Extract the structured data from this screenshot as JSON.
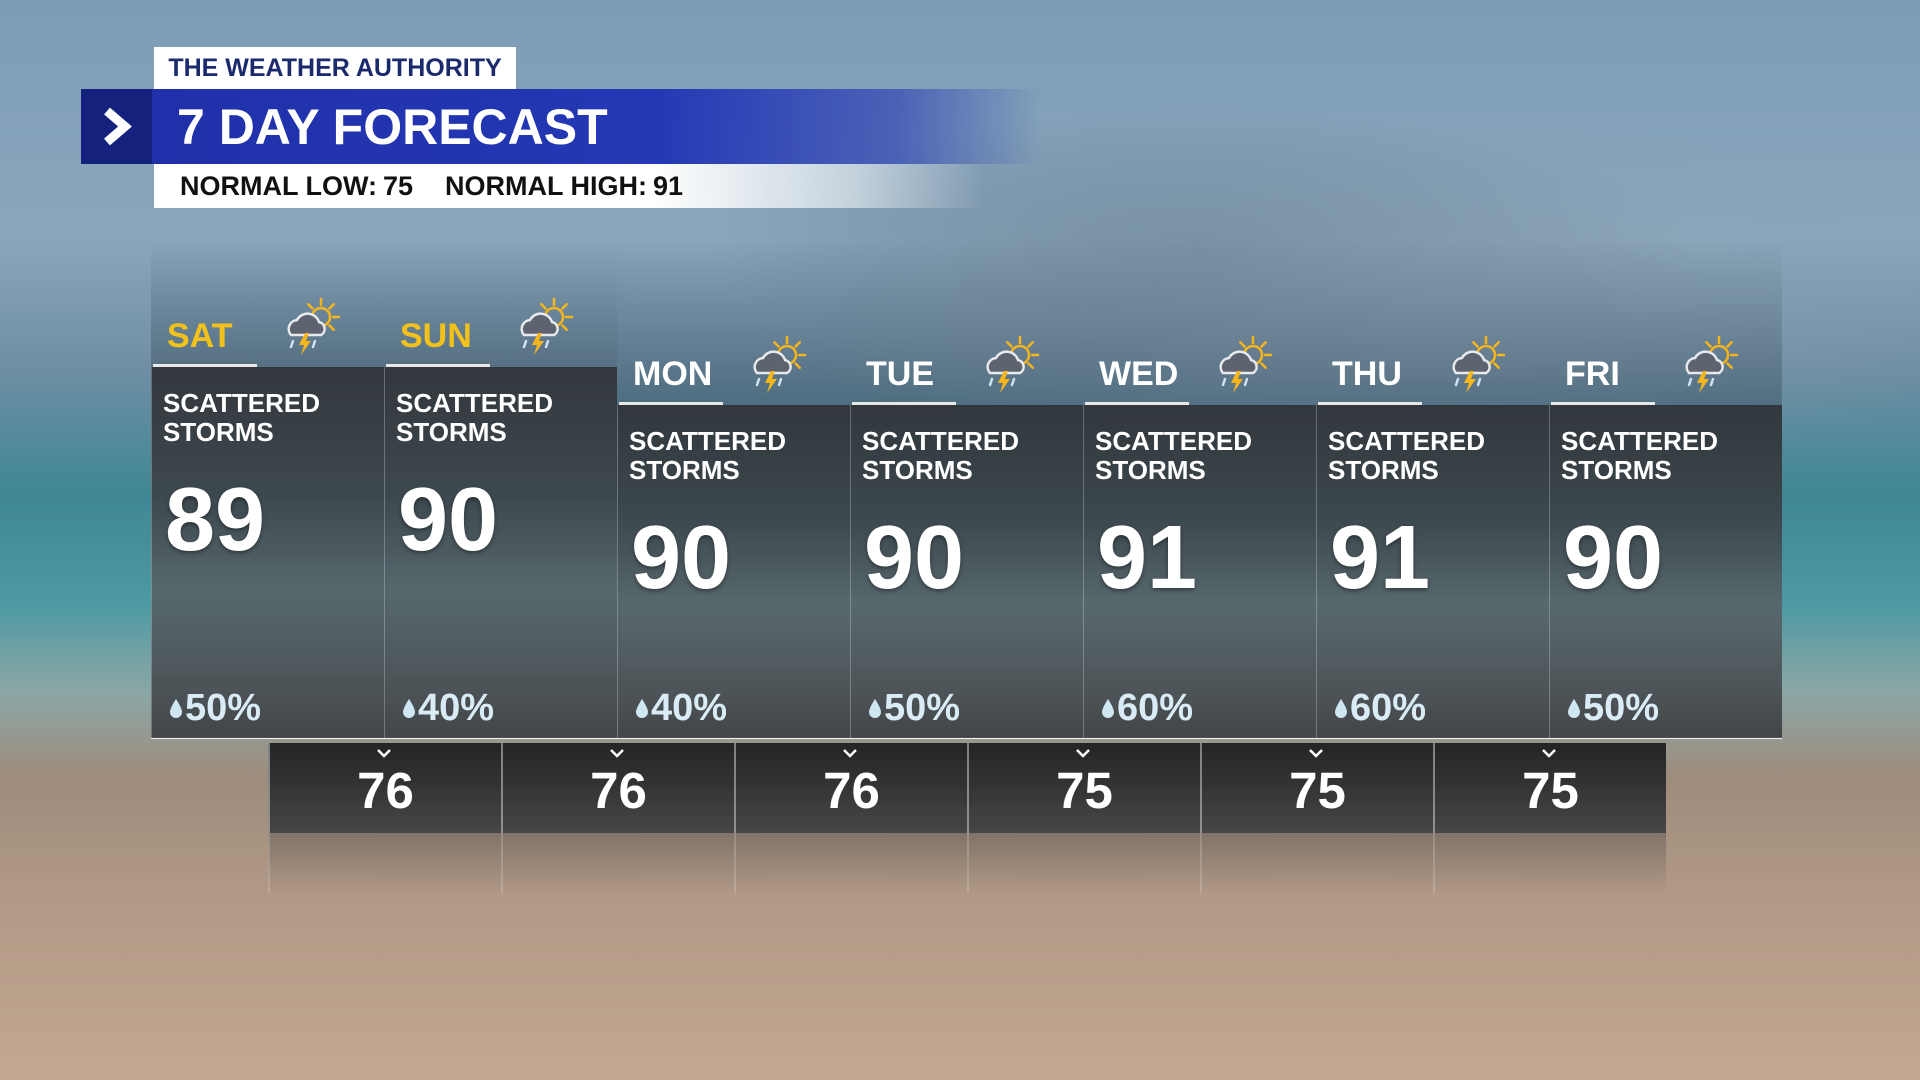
{
  "header": {
    "brand": "THE WEATHER AUTHORITY",
    "title": "7 DAY FORECAST",
    "normal_low_label": "NORMAL LOW:",
    "normal_low": 75,
    "normal_high_label": "NORMAL HIGH:",
    "normal_high": 91
  },
  "days": [
    {
      "name": "SAT",
      "condition": "SCATTERED STORMS",
      "high": 89,
      "precip": "50%"
    },
    {
      "name": "SUN",
      "condition": "SCATTERED STORMS",
      "high": 90,
      "precip": "40%"
    },
    {
      "name": "MON",
      "condition": "SCATTERED STORMS",
      "high": 90,
      "precip": "40%"
    },
    {
      "name": "TUE",
      "condition": "SCATTERED STORMS",
      "high": 90,
      "precip": "50%"
    },
    {
      "name": "WED",
      "condition": "SCATTERED STORMS",
      "high": 91,
      "precip": "60%"
    },
    {
      "name": "THU",
      "condition": "SCATTERED STORMS",
      "high": 91,
      "precip": "60%"
    },
    {
      "name": "FRI",
      "condition": "SCATTERED STORMS",
      "high": 90,
      "precip": "50%"
    }
  ],
  "lows": [
    76,
    76,
    76,
    75,
    75,
    75
  ]
}
